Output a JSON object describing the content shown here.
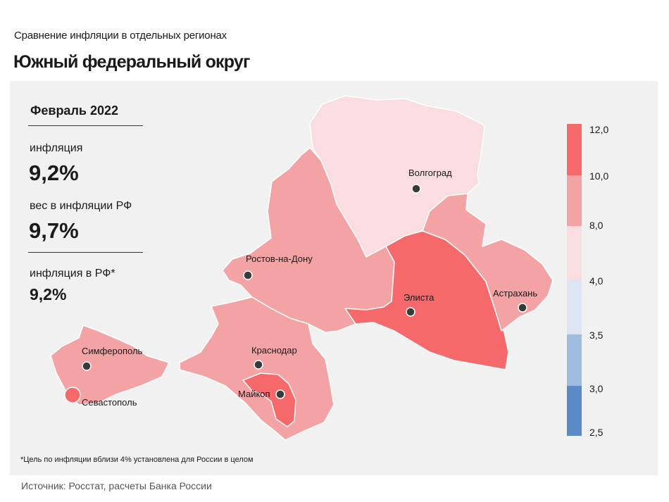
{
  "header": {
    "supertitle": "Сравнение инфляции в отдельных регионах",
    "title": "Южный федеральный округ"
  },
  "infobox": {
    "period": "Февраль 2022",
    "inflation_label": "инфляция",
    "inflation_value": "9,2%",
    "weight_label": "вес в инфляции РФ",
    "weight_value": "9,7%",
    "rf_label": "инфляция в РФ*",
    "rf_value": "9,2%"
  },
  "footnote": "*Цель по инфляции вблизи 4% установлена для России в целом",
  "source": "Источник: Росстат, расчеты Банка России",
  "legend": {
    "labels": [
      "12,0",
      "10,0",
      "8,0",
      "4,0",
      "3,5",
      "3,0",
      "2,5"
    ],
    "colors": [
      "#f5696b",
      "#f4a3a5",
      "#f9dde0",
      "#dde5f4",
      "#9fbde0",
      "#5b8bc6"
    ]
  },
  "cities": {
    "volgograd": "Волгоград",
    "rostov": "Ростов-на-Дону",
    "elista": "Элиста",
    "astrakhan": "Астрахань",
    "simferopol": "Симферополь",
    "krasnodar": "Краснодар",
    "maykop": "Майкоп",
    "sevastopol": "Севастополь"
  },
  "region_colors": {
    "volgograd": "#f9dde0",
    "rostov": "#f4a3a5",
    "kalmykia": "#f5696b",
    "astrakhan": "#f4a3a5",
    "crimea": "#f4a3a5",
    "krasnodar": "#f4a3a5",
    "adygea": "#f5696b",
    "sevastopol": "#f5696b"
  }
}
